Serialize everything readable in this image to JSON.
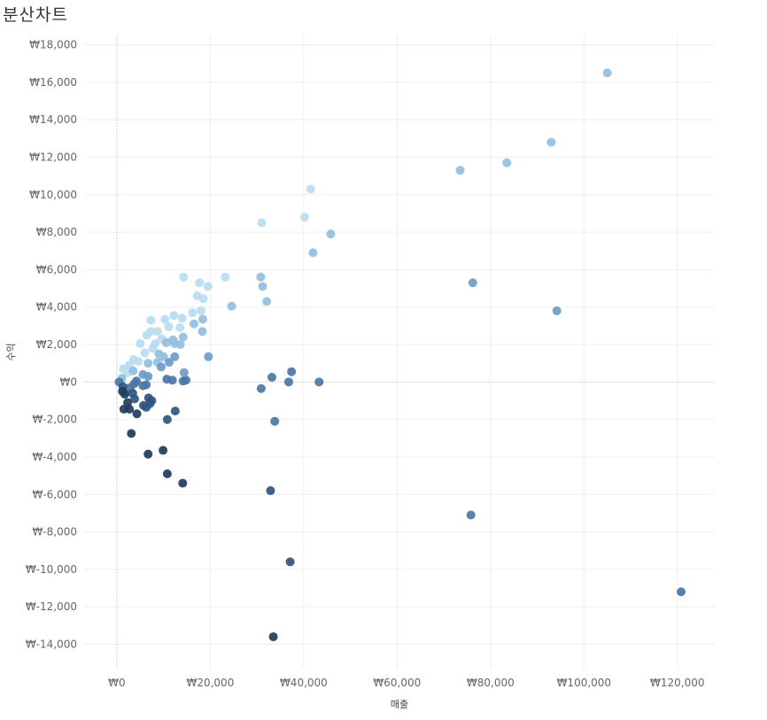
{
  "chart_data": {
    "type": "scatter",
    "title": "분산차트",
    "xlabel": "매출",
    "ylabel": "수익",
    "xlim": [
      -7000,
      128000
    ],
    "ylim": [
      -15300,
      18500
    ],
    "x_ticks": [
      0,
      20000,
      40000,
      60000,
      80000,
      100000,
      120000
    ],
    "x_tick_labels": [
      "₩0",
      "₩20,000",
      "₩40,000",
      "₩60,000",
      "₩80,000",
      "₩100,000",
      "₩120,000"
    ],
    "y_ticks": [
      18000,
      16000,
      14000,
      12000,
      10000,
      8000,
      6000,
      4000,
      2000,
      0,
      -2000,
      -4000,
      -6000,
      -8000,
      -10000,
      -12000,
      -14000
    ],
    "y_tick_labels": [
      "₩18,000",
      "₩16,000",
      "₩14,000",
      "₩12,000",
      "₩10,000",
      "₩8,000",
      "₩6,000",
      "₩4,000",
      "₩2,000",
      "₩0",
      "₩-2,000",
      "₩-4,000",
      "₩-6,000",
      "₩-8,000",
      "₩-10,000",
      "₩-12,000",
      "₩-14,000"
    ],
    "grid": true,
    "zero_lines": true,
    "color_scale": [
      "#1f3b5c",
      "#2e5580",
      "#4a77a5",
      "#6b9bc8",
      "#92bfe0",
      "#b9dcf0"
    ],
    "points": [
      {
        "x": 105000,
        "y": 16500
      },
      {
        "x": 93000,
        "y": 12800
      },
      {
        "x": 83500,
        "y": 11700
      },
      {
        "x": 73500,
        "y": 11300
      },
      {
        "x": 41500,
        "y": 10300
      },
      {
        "x": 40200,
        "y": 8800
      },
      {
        "x": 31000,
        "y": 8500
      },
      {
        "x": 45800,
        "y": 7900
      },
      {
        "x": 42000,
        "y": 6900
      },
      {
        "x": 76200,
        "y": 5300
      },
      {
        "x": 94200,
        "y": 3800
      },
      {
        "x": 23200,
        "y": 5600
      },
      {
        "x": 30800,
        "y": 5600
      },
      {
        "x": 31200,
        "y": 5100
      },
      {
        "x": 32100,
        "y": 4300
      },
      {
        "x": 24600,
        "y": 4050
      },
      {
        "x": 14300,
        "y": 5600
      },
      {
        "x": 17700,
        "y": 5300
      },
      {
        "x": 19500,
        "y": 5100
      },
      {
        "x": 17200,
        "y": 4600
      },
      {
        "x": 18500,
        "y": 4450
      },
      {
        "x": 18000,
        "y": 3800
      },
      {
        "x": 16200,
        "y": 3700
      },
      {
        "x": 18400,
        "y": 3350
      },
      {
        "x": 16500,
        "y": 3100
      },
      {
        "x": 18300,
        "y": 2700
      },
      {
        "x": 19600,
        "y": 1350
      },
      {
        "x": 14000,
        "y": 3400
      },
      {
        "x": 12200,
        "y": 3550
      },
      {
        "x": 13500,
        "y": 2900
      },
      {
        "x": 14200,
        "y": 2400
      },
      {
        "x": 13600,
        "y": 2000
      },
      {
        "x": 12400,
        "y": 2050
      },
      {
        "x": 12000,
        "y": 2250
      },
      {
        "x": 12400,
        "y": 1350
      },
      {
        "x": 10300,
        "y": 3350
      },
      {
        "x": 11100,
        "y": 2950
      },
      {
        "x": 7300,
        "y": 3300
      },
      {
        "x": 7300,
        "y": 2700
      },
      {
        "x": 6400,
        "y": 2500
      },
      {
        "x": 8700,
        "y": 2700
      },
      {
        "x": 9600,
        "y": 2300
      },
      {
        "x": 10600,
        "y": 2100
      },
      {
        "x": 8200,
        "y": 2050
      },
      {
        "x": 7700,
        "y": 1800
      },
      {
        "x": 5000,
        "y": 2050
      },
      {
        "x": 6000,
        "y": 1550
      },
      {
        "x": 9000,
        "y": 1500
      },
      {
        "x": 10000,
        "y": 1350
      },
      {
        "x": 8700,
        "y": 1050
      },
      {
        "x": 9500,
        "y": 800
      },
      {
        "x": 11200,
        "y": 1050
      },
      {
        "x": 6700,
        "y": 1000
      },
      {
        "x": 4600,
        "y": 1100
      },
      {
        "x": 3600,
        "y": 1200
      },
      {
        "x": 2700,
        "y": 900
      },
      {
        "x": 2300,
        "y": 500
      },
      {
        "x": 1100,
        "y": 200
      },
      {
        "x": 500,
        "y": 0
      },
      {
        "x": 1400,
        "y": 700
      },
      {
        "x": 3500,
        "y": 600
      },
      {
        "x": 5600,
        "y": 400
      },
      {
        "x": 6700,
        "y": 300
      },
      {
        "x": 4200,
        "y": 50
      },
      {
        "x": 3700,
        "y": -100
      },
      {
        "x": 2800,
        "y": -300
      },
      {
        "x": 3400,
        "y": -600
      },
      {
        "x": 3800,
        "y": -900
      },
      {
        "x": 5600,
        "y": -200
      },
      {
        "x": 6300,
        "y": -150
      },
      {
        "x": 1300,
        "y": -250
      },
      {
        "x": 1700,
        "y": -650
      },
      {
        "x": 1200,
        "y": -500
      },
      {
        "x": 2300,
        "y": -1100
      },
      {
        "x": 2700,
        "y": -1450
      },
      {
        "x": 1500,
        "y": -1450
      },
      {
        "x": 4300,
        "y": -1700
      },
      {
        "x": 5700,
        "y": -1250
      },
      {
        "x": 6300,
        "y": -1350
      },
      {
        "x": 7500,
        "y": -1000
      },
      {
        "x": 6800,
        "y": -850
      },
      {
        "x": 7100,
        "y": -1150
      },
      {
        "x": 10800,
        "y": -2000
      },
      {
        "x": 12500,
        "y": -1550
      },
      {
        "x": 3100,
        "y": -2750
      },
      {
        "x": 6700,
        "y": -3850
      },
      {
        "x": 9900,
        "y": -3650
      },
      {
        "x": 10800,
        "y": -4900
      },
      {
        "x": 14100,
        "y": -5400
      },
      {
        "x": 10700,
        "y": 150
      },
      {
        "x": 11900,
        "y": 100
      },
      {
        "x": 14200,
        "y": 50
      },
      {
        "x": 14800,
        "y": 100
      },
      {
        "x": 14400,
        "y": 500
      },
      {
        "x": 30900,
        "y": -350
      },
      {
        "x": 33200,
        "y": 250
      },
      {
        "x": 36800,
        "y": 0
      },
      {
        "x": 37400,
        "y": 550
      },
      {
        "x": 43300,
        "y": 0
      },
      {
        "x": 33800,
        "y": -2100
      },
      {
        "x": 32900,
        "y": -5800
      },
      {
        "x": 37100,
        "y": -9600
      },
      {
        "x": 33500,
        "y": -13600
      },
      {
        "x": 75800,
        "y": -7100
      },
      {
        "x": 120800,
        "y": -11200
      }
    ]
  }
}
